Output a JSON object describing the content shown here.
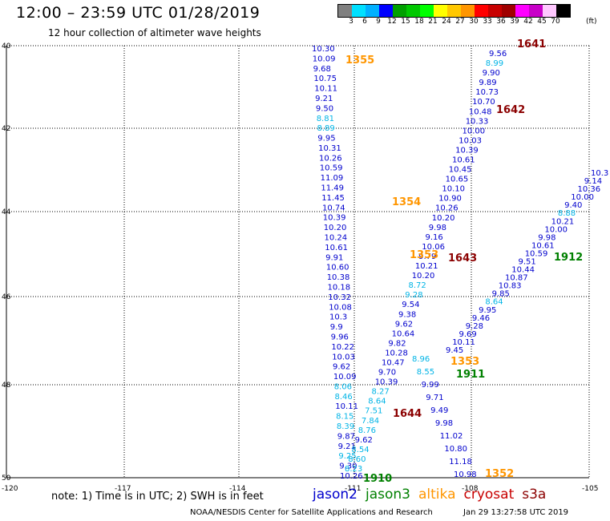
{
  "title": "12:00 – 23:59 UTC 01/28/2019",
  "subtitle": "12 hour collection of altimeter wave heights",
  "colorbar": {
    "colors": [
      "#808080",
      "#00e0ff",
      "#00b0ff",
      "#0000ff",
      "#00a000",
      "#00c800",
      "#00ff00",
      "#ffff00",
      "#ffc800",
      "#ff9600",
      "#ff0000",
      "#c80000",
      "#a00000",
      "#ff00ff",
      "#c800c8",
      "#ffc8ff",
      "#000000"
    ],
    "labels": [
      "3",
      "6",
      "9",
      "12",
      "15",
      "18",
      "21",
      "24",
      "27",
      "30",
      "33",
      "36",
      "39",
      "42",
      "45",
      "70"
    ],
    "unit": "(ft)"
  },
  "axes": {
    "lat_labels": [
      "40",
      "42",
      "44",
      "46",
      "48",
      "50"
    ],
    "lon_labels": [
      "-120",
      "-117",
      "-114",
      "-111",
      "-108",
      "-105"
    ]
  },
  "wave_colors": {
    "blue": "#0000cd",
    "cyan": "#00b4e6",
    "orange": "#ff9600",
    "maroon": "#8b0000",
    "green": "#008000"
  },
  "tracks": [
    {
      "name": "track-a",
      "values": [
        {
          "v": "10.30",
          "c": "blue"
        },
        {
          "v": "10.09",
          "c": "blue"
        },
        {
          "v": "9.68",
          "c": "blue"
        },
        {
          "v": "10.75",
          "c": "blue"
        },
        {
          "v": "10.11",
          "c": "blue"
        },
        {
          "v": "9.21",
          "c": "blue"
        },
        {
          "v": "9.50",
          "c": "blue"
        },
        {
          "v": "8.81",
          "c": "cyan"
        },
        {
          "v": "8.89",
          "c": "cyan"
        },
        {
          "v": "9.95",
          "c": "blue"
        },
        {
          "v": "10.31",
          "c": "blue"
        },
        {
          "v": "10.26",
          "c": "blue"
        },
        {
          "v": "10.59",
          "c": "blue"
        },
        {
          "v": "11.09",
          "c": "blue"
        },
        {
          "v": "11.49",
          "c": "blue"
        },
        {
          "v": "11.45",
          "c": "blue"
        },
        {
          "v": "10.74",
          "c": "blue"
        },
        {
          "v": "10.39",
          "c": "blue"
        },
        {
          "v": "10.20",
          "c": "blue"
        },
        {
          "v": "10.24",
          "c": "blue"
        },
        {
          "v": "10.61",
          "c": "blue"
        },
        {
          "v": "9.91",
          "c": "blue"
        },
        {
          "v": "10.60",
          "c": "blue"
        },
        {
          "v": "10.38",
          "c": "blue"
        },
        {
          "v": "10.18",
          "c": "blue"
        },
        {
          "v": "10.32",
          "c": "blue"
        },
        {
          "v": "10.08",
          "c": "blue"
        },
        {
          "v": "10.3",
          "c": "blue"
        },
        {
          "v": "9.9",
          "c": "blue"
        },
        {
          "v": "9.96",
          "c": "blue"
        },
        {
          "v": "10.22",
          "c": "blue"
        },
        {
          "v": "10.03",
          "c": "blue"
        },
        {
          "v": "9.62",
          "c": "blue"
        },
        {
          "v": "10.09",
          "c": "blue"
        },
        {
          "v": "8.06",
          "c": "cyan"
        },
        {
          "v": "8.46",
          "c": "cyan"
        },
        {
          "v": "10.11",
          "c": "blue"
        },
        {
          "v": "8.15",
          "c": "cyan"
        },
        {
          "v": "8.39",
          "c": "cyan"
        },
        {
          "v": "9.87",
          "c": "blue"
        },
        {
          "v": "9.21",
          "c": "blue"
        },
        {
          "v": "9.25",
          "c": "cyan"
        },
        {
          "v": "9.30",
          "c": "blue"
        },
        {
          "v": "10.26",
          "c": "blue"
        }
      ]
    },
    {
      "name": "track-b",
      "values": [
        {
          "v": "9.56",
          "c": "blue"
        },
        {
          "v": "8.99",
          "c": "cyan"
        },
        {
          "v": "9.90",
          "c": "blue"
        },
        {
          "v": "9.89",
          "c": "blue"
        },
        {
          "v": "10.73",
          "c": "blue"
        },
        {
          "v": "10.70",
          "c": "blue"
        },
        {
          "v": "10.48",
          "c": "blue"
        },
        {
          "v": "10.33",
          "c": "blue"
        },
        {
          "v": "10.00",
          "c": "blue"
        },
        {
          "v": "10.03",
          "c": "blue"
        },
        {
          "v": "10.39",
          "c": "blue"
        },
        {
          "v": "10.61",
          "c": "blue"
        },
        {
          "v": "10.45",
          "c": "blue"
        },
        {
          "v": "10.65",
          "c": "blue"
        },
        {
          "v": "10.10",
          "c": "blue"
        },
        {
          "v": "10.90",
          "c": "blue"
        },
        {
          "v": "10.26",
          "c": "blue"
        },
        {
          "v": "10.20",
          "c": "blue"
        },
        {
          "v": "9.98",
          "c": "blue"
        },
        {
          "v": "9.16",
          "c": "blue"
        },
        {
          "v": "10.06",
          "c": "blue"
        },
        {
          "v": "9.79",
          "c": "blue"
        },
        {
          "v": "10.21",
          "c": "blue"
        },
        {
          "v": "10.20",
          "c": "blue"
        },
        {
          "v": "8.72",
          "c": "cyan"
        },
        {
          "v": "9.28",
          "c": "cyan"
        },
        {
          "v": "9.54",
          "c": "blue"
        },
        {
          "v": "9.38",
          "c": "blue"
        },
        {
          "v": "9.62",
          "c": "blue"
        },
        {
          "v": "10.64",
          "c": "blue"
        },
        {
          "v": "9.82",
          "c": "blue"
        },
        {
          "v": "10.28",
          "c": "blue"
        },
        {
          "v": "10.47",
          "c": "blue"
        },
        {
          "v": "9.70",
          "c": "blue"
        },
        {
          "v": "10.39",
          "c": "blue"
        },
        {
          "v": "8.27",
          "c": "cyan"
        },
        {
          "v": "8.64",
          "c": "cyan"
        },
        {
          "v": "7.51",
          "c": "cyan"
        },
        {
          "v": "7.84",
          "c": "cyan"
        },
        {
          "v": "8.76",
          "c": "cyan"
        },
        {
          "v": "9.62",
          "c": "blue"
        },
        {
          "v": "8.54",
          "c": "cyan"
        },
        {
          "v": "8.60",
          "c": "cyan"
        },
        {
          "v": "8.23",
          "c": "cyan"
        }
      ]
    },
    {
      "name": "track-c",
      "values": [
        {
          "v": "8.96",
          "c": "cyan"
        },
        {
          "v": "8.55",
          "c": "cyan"
        },
        {
          "v": "9.99",
          "c": "blue"
        },
        {
          "v": "9.71",
          "c": "blue"
        },
        {
          "v": "9.49",
          "c": "blue"
        },
        {
          "v": "9.98",
          "c": "blue"
        },
        {
          "v": "11.02",
          "c": "blue"
        },
        {
          "v": "10.80",
          "c": "blue"
        },
        {
          "v": "11.18",
          "c": "blue"
        },
        {
          "v": "10.98",
          "c": "blue"
        }
      ]
    },
    {
      "name": "track-d",
      "values": [
        {
          "v": "10.3",
          "c": "blue"
        },
        {
          "v": "9.14",
          "c": "blue"
        },
        {
          "v": "10.36",
          "c": "blue"
        },
        {
          "v": "10.00",
          "c": "blue"
        },
        {
          "v": "9.40",
          "c": "blue"
        },
        {
          "v": "8.88",
          "c": "cyan"
        },
        {
          "v": "10.21",
          "c": "blue"
        },
        {
          "v": "10.00",
          "c": "blue"
        },
        {
          "v": "9.98",
          "c": "blue"
        },
        {
          "v": "10.61",
          "c": "blue"
        },
        {
          "v": "10.59",
          "c": "blue"
        },
        {
          "v": "9.51",
          "c": "blue"
        },
        {
          "v": "10.44",
          "c": "blue"
        },
        {
          "v": "10.87",
          "c": "blue"
        },
        {
          "v": "10.83",
          "c": "blue"
        },
        {
          "v": "9.85",
          "c": "blue"
        },
        {
          "v": "8.64",
          "c": "cyan"
        },
        {
          "v": "9.95",
          "c": "blue"
        },
        {
          "v": "9.46",
          "c": "blue"
        },
        {
          "v": "9.28",
          "c": "blue"
        },
        {
          "v": "9.69",
          "c": "blue"
        },
        {
          "v": "10.11",
          "c": "blue"
        },
        {
          "v": "9.45",
          "c": "blue"
        }
      ]
    }
  ],
  "pass_times": [
    {
      "t": "1641",
      "c": "maroon"
    },
    {
      "t": "1355",
      "c": "orange"
    },
    {
      "t": "1642",
      "c": "maroon"
    },
    {
      "t": "1354",
      "c": "orange"
    },
    {
      "t": "1353",
      "c": "orange"
    },
    {
      "t": "1643",
      "c": "maroon"
    },
    {
      "t": "1912",
      "c": "green"
    },
    {
      "t": "1353",
      "c": "orange"
    },
    {
      "t": "1911",
      "c": "green"
    },
    {
      "t": "1644",
      "c": "maroon"
    },
    {
      "t": "1910",
      "c": "green"
    },
    {
      "t": "1352",
      "c": "orange"
    }
  ],
  "note": "note:  1) Time is in UTC;  2) SWH is in feet",
  "legend": [
    {
      "label": "jason2",
      "color": "#0000cd"
    },
    {
      "label": "jason3",
      "color": "#008000"
    },
    {
      "label": "altika",
      "color": "#ff9600"
    },
    {
      "label": "cryosat",
      "color": "#c80000"
    },
    {
      "label": "s3a",
      "color": "#8b0000"
    }
  ],
  "credit": "NOAA/NESDIS Center for Satellite Applications and Research",
  "timestamp": "Jan 29 13:27:58 UTC 2019"
}
